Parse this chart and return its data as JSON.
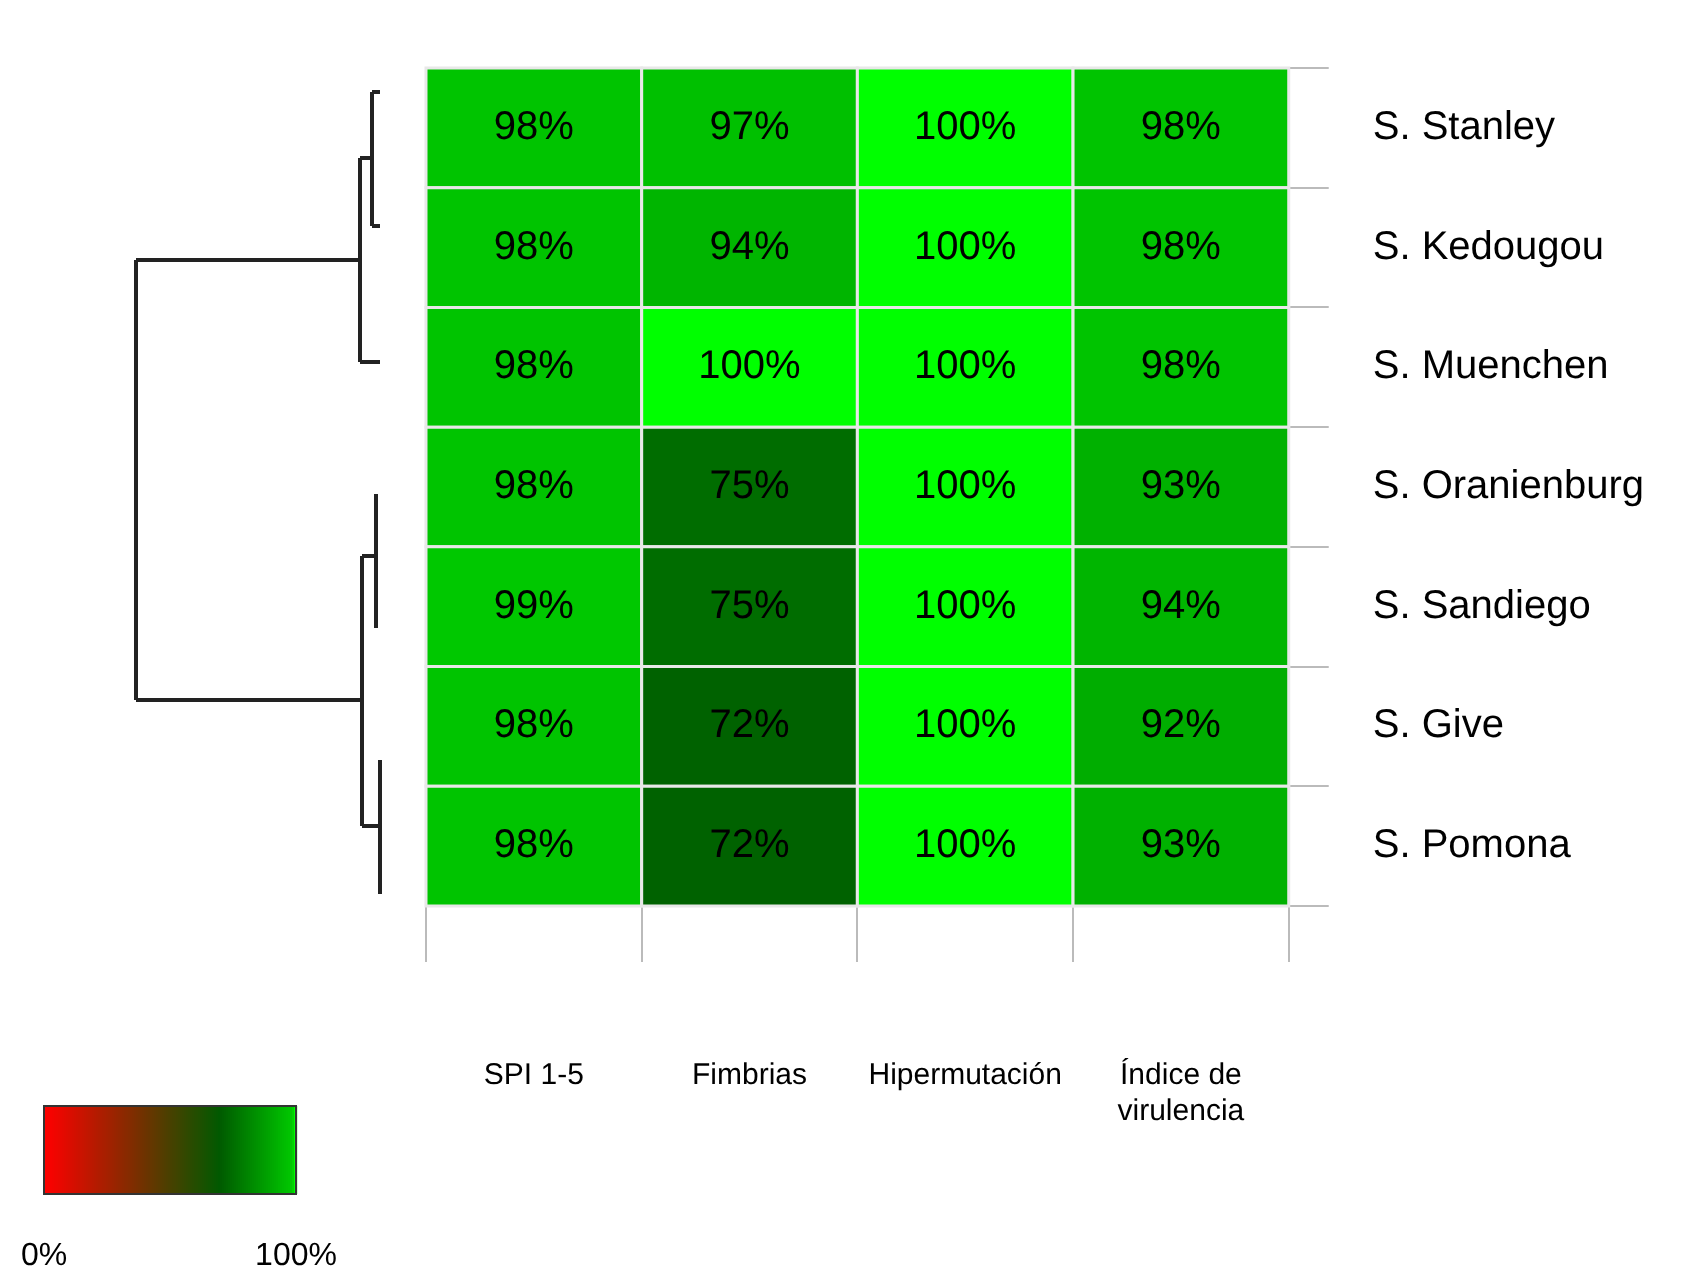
{
  "chart_data": {
    "type": "heatmap",
    "categories": [
      "SPI 1-5",
      "Fimbrias",
      "Hipermutación",
      "Índice de virulencia"
    ],
    "y_categories": [
      "S. Stanley",
      "S. Kedougou",
      "S. Muenchen",
      "S. Oranienburg",
      "S. Sandiego",
      "S. Give",
      "S. Pomona"
    ],
    "cells": [
      [
        98,
        97,
        100,
        98
      ],
      [
        98,
        94,
        100,
        98
      ],
      [
        98,
        100,
        100,
        98
      ],
      [
        98,
        75,
        100,
        93
      ],
      [
        99,
        75,
        100,
        94
      ],
      [
        98,
        72,
        100,
        92
      ],
      [
        98,
        72,
        100,
        93
      ]
    ],
    "cell_labels": [
      [
        "98%",
        "97%",
        "100%",
        "98%"
      ],
      [
        "98%",
        "94%",
        "100%",
        "98%"
      ],
      [
        "98%",
        "100%",
        "100%",
        "98%"
      ],
      [
        "98%",
        "75%",
        "100%",
        "93%"
      ],
      [
        "99%",
        "75%",
        "100%",
        "94%"
      ],
      [
        "98%",
        "72%",
        "100%",
        "92%"
      ],
      [
        "98%",
        "72%",
        "100%",
        "93%"
      ]
    ],
    "clim": [
      0,
      100
    ],
    "cticks": [
      {
        "value": 0,
        "label": "0%"
      },
      {
        "value": 100,
        "label": "100%"
      }
    ]
  }
}
